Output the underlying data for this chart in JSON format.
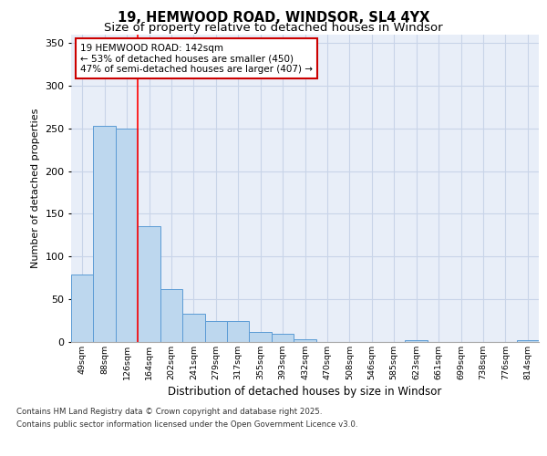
{
  "title1": "19, HEMWOOD ROAD, WINDSOR, SL4 4YX",
  "title2": "Size of property relative to detached houses in Windsor",
  "xlabel": "Distribution of detached houses by size in Windsor",
  "ylabel": "Number of detached properties",
  "categories": [
    "49sqm",
    "88sqm",
    "126sqm",
    "164sqm",
    "202sqm",
    "241sqm",
    "279sqm",
    "317sqm",
    "355sqm",
    "393sqm",
    "432sqm",
    "470sqm",
    "508sqm",
    "546sqm",
    "585sqm",
    "623sqm",
    "661sqm",
    "699sqm",
    "738sqm",
    "776sqm",
    "814sqm"
  ],
  "values": [
    79,
    253,
    250,
    135,
    62,
    33,
    25,
    25,
    12,
    10,
    3,
    0,
    0,
    0,
    0,
    2,
    0,
    0,
    0,
    0,
    2
  ],
  "bar_color": "#bdd7ee",
  "bar_edge_color": "#5b9bd5",
  "grid_color": "#c8d4e8",
  "background_color": "#e8eef8",
  "property_line_x": 2.5,
  "annotation_line1": "19 HEMWOOD ROAD: 142sqm",
  "annotation_line2": "← 53% of detached houses are smaller (450)",
  "annotation_line3": "47% of semi-detached houses are larger (407) →",
  "annotation_box_color": "#cc0000",
  "ylim": [
    0,
    360
  ],
  "yticks": [
    0,
    50,
    100,
    150,
    200,
    250,
    300,
    350
  ],
  "footer1": "Contains HM Land Registry data © Crown copyright and database right 2025.",
  "footer2": "Contains public sector information licensed under the Open Government Licence v3.0."
}
